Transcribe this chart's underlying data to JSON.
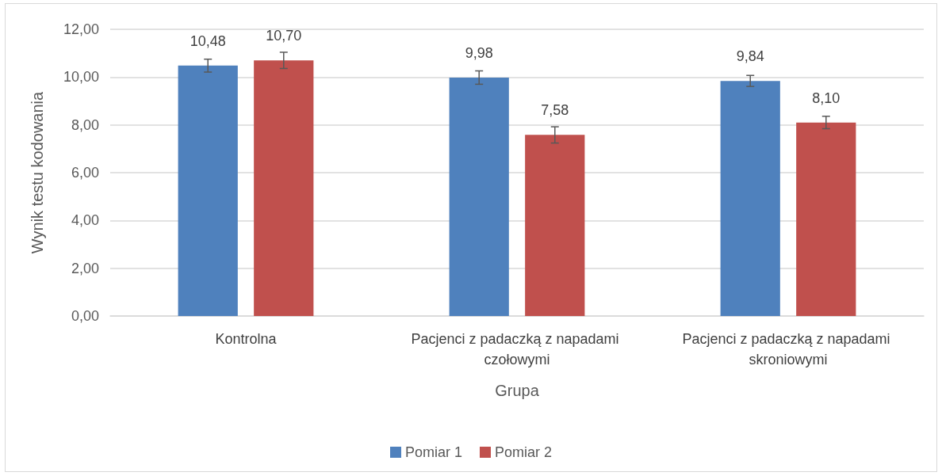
{
  "chart_data": {
    "type": "bar",
    "xlabel": "Grupa",
    "ylabel": "Wynik testu kodowania",
    "categories": [
      "Kontrolna",
      "Pacjenci z padaczką z napadami czołowymi",
      "Pacjenci z padaczką z napadami skroniowymi"
    ],
    "series": [
      {
        "name": "Pomiar 1",
        "color": "#4f81bd",
        "values": [
          10.48,
          9.98,
          9.84
        ],
        "value_labels": [
          "10,48",
          "9,98",
          "9,84"
        ],
        "errors": [
          0.27,
          0.28,
          0.23
        ]
      },
      {
        "name": "Pomiar 2",
        "color": "#c0504d",
        "values": [
          10.7,
          7.58,
          8.1
        ],
        "value_labels": [
          "10,70",
          "7,58",
          "8,10"
        ],
        "errors": [
          0.34,
          0.34,
          0.26
        ]
      }
    ],
    "ylim": [
      0,
      12
    ],
    "yticks": [
      {
        "value": 0,
        "label": "0,00"
      },
      {
        "value": 2,
        "label": "2,00"
      },
      {
        "value": 4,
        "label": "4,00"
      },
      {
        "value": 6,
        "label": "6,00"
      },
      {
        "value": 8,
        "label": "8,00"
      },
      {
        "value": 10,
        "label": "10,00"
      },
      {
        "value": 12,
        "label": "12,00"
      }
    ],
    "grid": "y",
    "legend": "bottom"
  }
}
